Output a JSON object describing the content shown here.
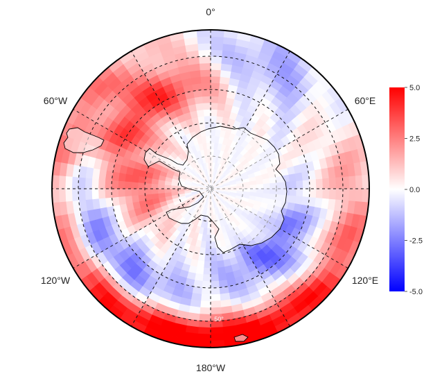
{
  "map": {
    "projection": "south-polar-stereographic",
    "longitude_labels": {
      "top": "0°",
      "upper_left": "60°W",
      "upper_right": "60°E",
      "lower_left": "120°W",
      "lower_right": "120°E",
      "bottom": "180°W"
    },
    "latitude_label": "50°",
    "graticule": "dashed",
    "coastline": "Antarctica and southern South America"
  },
  "colorbar": {
    "ticks": [
      "5.0",
      "2.5",
      "0.0",
      "-2.5",
      "-5.0"
    ],
    "min": -5.0,
    "max": 5.0,
    "colors": {
      "high": "#ff0000",
      "mid": "#ffffff",
      "low": "#0000ff"
    }
  }
}
